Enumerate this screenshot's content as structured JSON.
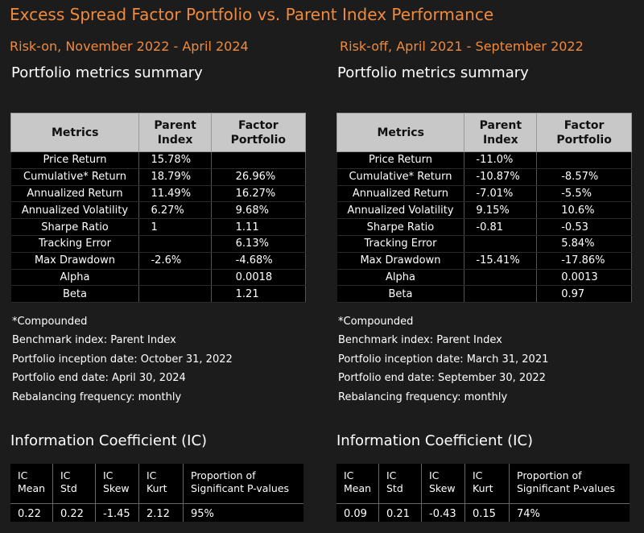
{
  "title": "Excess Spread Factor Portfolio vs. Parent Index Performance",
  "colors": {
    "accent": "#f08a3c",
    "background": "#1c1c1c",
    "header_bg": "#c8c8c8",
    "table_bg": "#000000"
  },
  "panels": [
    {
      "period": "Risk-on, November 2022 - April 2024",
      "section_title": "Portfolio metrics summary",
      "headers": {
        "metrics": "Metrics",
        "parent_line1": "Parent",
        "parent_line2": "Index",
        "factor_line1": "Factor",
        "factor_line2": "Portfolio"
      },
      "rows": [
        {
          "metric": "Price Return",
          "parent": "15.78%",
          "factor": ""
        },
        {
          "metric": "Cumulative* Return",
          "parent": "18.79%",
          "factor": "26.96%"
        },
        {
          "metric": "Annualized Return",
          "parent": "11.49%",
          "factor": "16.27%"
        },
        {
          "metric": "Annualized Volatility",
          "parent": "6.27%",
          "factor": "9.68%"
        },
        {
          "metric": "Sharpe Ratio",
          "parent": "1",
          "factor": "1.11"
        },
        {
          "metric": "Tracking Error",
          "parent": "",
          "factor": "6.13%"
        },
        {
          "metric": "Max Drawdown",
          "parent": "-2.6%",
          "factor": "-4.68%"
        },
        {
          "metric": "Alpha",
          "parent": "",
          "factor": "0.0018"
        },
        {
          "metric": "Beta",
          "parent": "",
          "factor": "1.21"
        }
      ],
      "notes": {
        "compounded": "*Compounded",
        "benchmark": "Benchmark index: Parent Index",
        "inception": "Portfolio inception date: October 31, 2022",
        "end": "Portfolio end date: April 30, 2024",
        "rebalancing": "Rebalancing frequency: monthly"
      },
      "ic": {
        "title": "Information Coefficient (IC)",
        "headers": [
          {
            "line1": "IC",
            "line2": "Mean"
          },
          {
            "line1": "IC",
            "line2": "Std"
          },
          {
            "line1": "IC",
            "line2": "Skew"
          },
          {
            "line1": "IC",
            "line2": "Kurt"
          },
          {
            "line1": "Proportion of",
            "line2": "Significant P-values"
          }
        ],
        "values": [
          "0.22",
          "0.22",
          "-1.45",
          "2.12",
          "95%"
        ]
      }
    },
    {
      "period": "Risk-off, April 2021 - September 2022",
      "section_title": "Portfolio metrics summary",
      "headers": {
        "metrics": "Metrics",
        "parent_line1": "Parent",
        "parent_line2": "Index",
        "factor_line1": "Factor",
        "factor_line2": "Portfolio"
      },
      "rows": [
        {
          "metric": "Price Return",
          "parent": "-11.0%",
          "factor": ""
        },
        {
          "metric": "Cumulative* Return",
          "parent": "-10.87%",
          "factor": "-8.57%"
        },
        {
          "metric": "Annualized Return",
          "parent": "-7.01%",
          "factor": "-5.5%"
        },
        {
          "metric": "Annualized Volatility",
          "parent": "9.15%",
          "factor": "10.6%"
        },
        {
          "metric": "Sharpe Ratio",
          "parent": "-0.81",
          "factor": "-0.53"
        },
        {
          "metric": "Tracking Error",
          "parent": "",
          "factor": "5.84%"
        },
        {
          "metric": "Max Drawdown",
          "parent": "-15.41%",
          "factor": "-17.86%"
        },
        {
          "metric": "Alpha",
          "parent": "",
          "factor": "0.0013"
        },
        {
          "metric": "Beta",
          "parent": "",
          "factor": "0.97"
        }
      ],
      "notes": {
        "compounded": "*Compounded",
        "benchmark": "Benchmark index: Parent Index",
        "inception": "Portfolio inception date: March 31, 2021",
        "end": "Portfolio end date: September 30, 2022",
        "rebalancing": "Rebalancing frequency: monthly"
      },
      "ic": {
        "title": "Information Coefficient (IC)",
        "headers": [
          {
            "line1": "IC",
            "line2": "Mean"
          },
          {
            "line1": "IC",
            "line2": "Std"
          },
          {
            "line1": "IC",
            "line2": "Skew"
          },
          {
            "line1": "IC",
            "line2": "Kurt"
          },
          {
            "line1": "Proportion of",
            "line2": "Significant P-values"
          }
        ],
        "values": [
          "0.09",
          "0.21",
          "-0.43",
          "0.15",
          "74%"
        ]
      }
    }
  ]
}
